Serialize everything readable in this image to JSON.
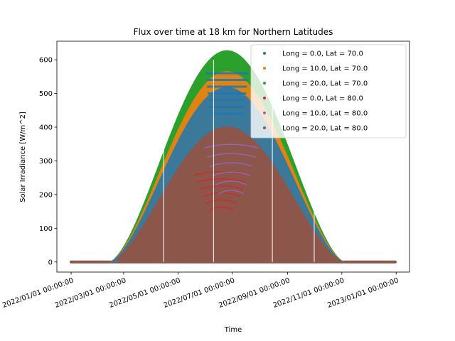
{
  "chart_data": {
    "type": "scatter",
    "title": "Flux over time at 18 km for Northern Latitudes",
    "xlabel": "Time",
    "ylabel": "Solar Irradiance [W/m^2]",
    "x_ticks": [
      "2022/01/01 00:00:00",
      "2022/03/01 00:00:00",
      "2022/05/01 00:00:00",
      "2022/07/01 00:00:00",
      "2022/09/01 00:00:00",
      "2022/11/01 00:00:00",
      "2023/01/01 00:00:00"
    ],
    "xlim": [
      "2021/12/16",
      "2023/01/16"
    ],
    "y_ticks": [
      0,
      100,
      200,
      300,
      400,
      500,
      600
    ],
    "ylim": [
      -30,
      655
    ],
    "grid": false,
    "legend_position": "upper-right",
    "series": [
      {
        "name": "Long = 0.0, Lat = 70.0",
        "color": "#1f77b4",
        "peak": 545,
        "low_peak": 60,
        "polar_day": [
          "2022/05/15",
          "2022/07/29"
        ]
      },
      {
        "name": "Long = 10.0, Lat = 70.0",
        "color": "#ff7f0e",
        "peak": 580,
        "low_peak": 65,
        "polar_day": [
          "2022/05/15",
          "2022/07/29"
        ]
      },
      {
        "name": "Long = 20.0, Lat = 70.0",
        "color": "#2ca02c",
        "peak": 628,
        "low_peak": 70,
        "polar_day": [
          "2022/05/15",
          "2022/07/29"
        ]
      },
      {
        "name": "Long = 0.0, Lat = 80.0",
        "color": "#d62728",
        "peak": 300,
        "low_peak": 0,
        "polar_day": [
          "2022/04/15",
          "2022/08/28"
        ]
      },
      {
        "name": "Long = 10.0, Lat = 80.0",
        "color": "#9467bd",
        "peak": 390,
        "low_peak": 0,
        "polar_day": [
          "2022/04/15",
          "2022/08/28"
        ]
      },
      {
        "name": "Long = 20.0, Lat = 80.0",
        "color": "#8c564b",
        "peak": 410,
        "low_peak": 0,
        "polar_day": [
          "2022/04/15",
          "2022/08/28"
        ]
      }
    ],
    "envelope": {
      "start": "2022/01/01",
      "rise_start": "2022/02/12",
      "peak_date": "2022/06/25",
      "fall_end": "2022/11/05",
      "end": "2022/12/31",
      "peak_value": 628,
      "gap_dates": [
        "2022/04/15",
        "2022/06/10",
        "2022/08/15",
        "2022/10/01"
      ]
    }
  }
}
